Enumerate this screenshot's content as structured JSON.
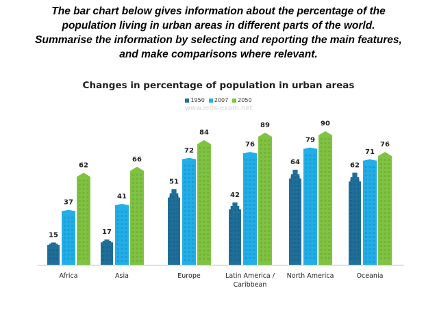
{
  "prompt": {
    "lines": [
      "The bar chart below gives information about the percentage of the",
      "population living in urban areas in different parts of the world.",
      "Summarise the information by selecting and reporting the main features,",
      "and make comparisons where relevant."
    ]
  },
  "watermark": "www.ielts-exam.net",
  "chart_data": {
    "type": "bar",
    "title": "Changes in percentage of population in urban areas",
    "categories": [
      "Africa",
      "Asia",
      "Europe",
      "Latin America / Caribbean",
      "North America",
      "Oceania"
    ],
    "category_label_lines": [
      [
        "Africa"
      ],
      [
        "Asia"
      ],
      [
        "Europe"
      ],
      [
        "Latin America /",
        "Caribbean"
      ],
      [
        "North America"
      ],
      [
        "Oceania"
      ]
    ],
    "series": [
      {
        "name": "1950",
        "color": "#1f6f9a",
        "values": [
          15,
          17,
          51,
          42,
          64,
          62
        ]
      },
      {
        "name": "2007",
        "color": "#22aee8",
        "values": [
          37,
          41,
          72,
          76,
          79,
          71
        ]
      },
      {
        "name": "2050",
        "color": "#80c342",
        "values": [
          62,
          66,
          84,
          89,
          90,
          76
        ]
      }
    ],
    "legend_position": "top-center",
    "grid": false,
    "ylim": [
      0,
      100
    ]
  }
}
